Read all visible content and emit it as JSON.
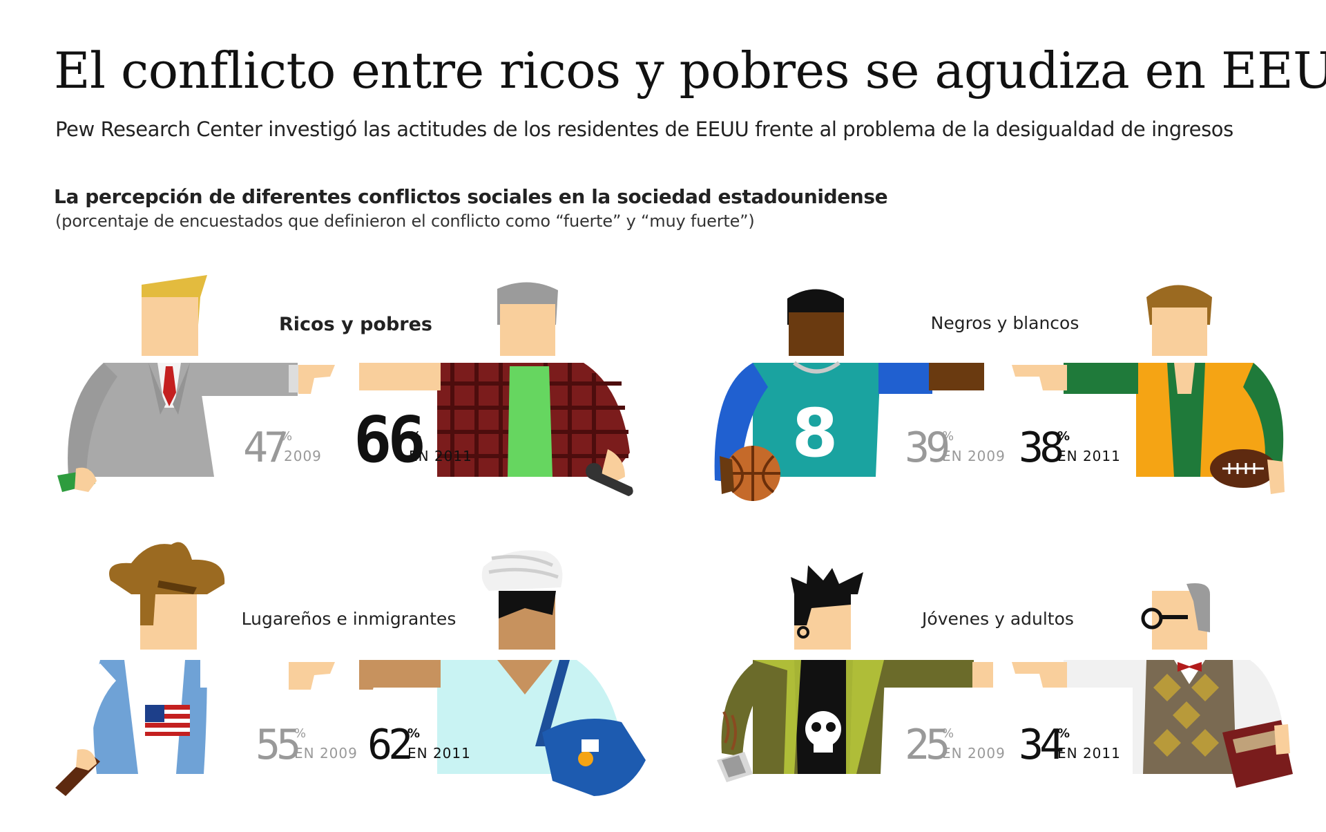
{
  "header": {
    "title": "El conflicto entre ricos y pobres se agudiza en EEUU",
    "subtitle": "Pew Research Center investigó las actitudes de los residentes de EEUU frente al problema de la desigualdad de ingresos"
  },
  "chart_data": {
    "type": "table",
    "title": "La percepción de diferentes conflictos sociales en la sociedad estadounidense",
    "subtitle": "(porcentaje de encuestados que definieron el conflicto como “fuerte” y “muy fuerte”)",
    "unit": "%",
    "columns": [
      "2009",
      "2011"
    ],
    "rows": [
      {
        "category": "Ricos y pobres",
        "v2009": 47,
        "v2011": 66,
        "label2009": "2009",
        "label2011": "EN 2011"
      },
      {
        "category": "Negros y blancos",
        "v2009": 39,
        "v2011": 38,
        "label2009": "EN 2009",
        "label2011": "EN 2011"
      },
      {
        "category": "Lugareños e inmigrantes",
        "v2009": 55,
        "v2011": 62,
        "label2009": "EN 2009",
        "label2011": "EN 2011"
      },
      {
        "category": "Jóvenes y adultos",
        "v2009": 25,
        "v2011": 34,
        "label2009": "EN 2009",
        "label2011": "EN 2011"
      }
    ]
  },
  "illustration_jersey_number": "8"
}
